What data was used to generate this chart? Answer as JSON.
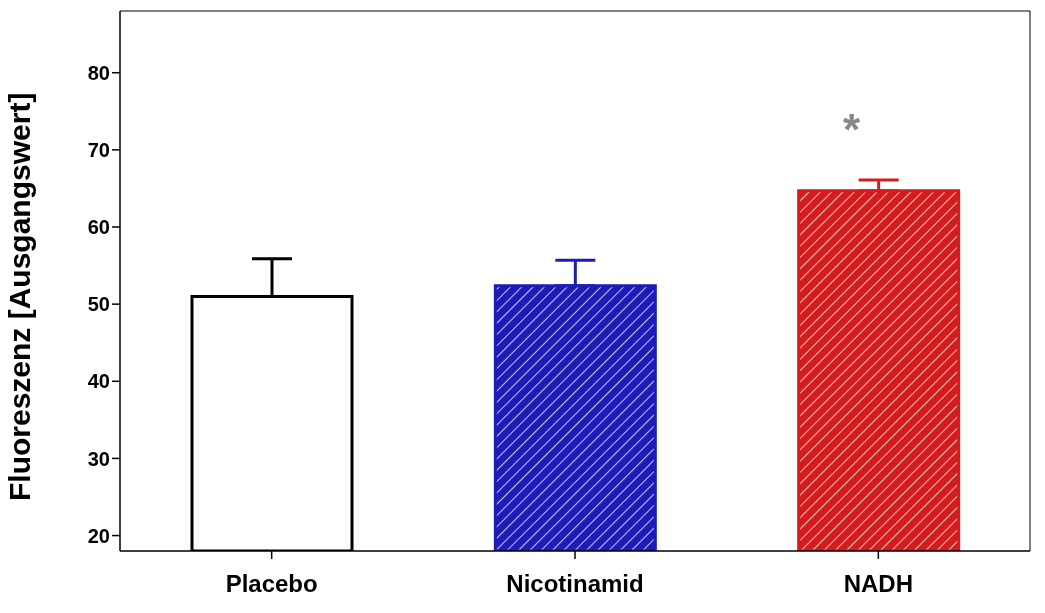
{
  "chart_data": {
    "type": "bar",
    "ylabel": "Fluoreszenz [Ausgangswert]",
    "categories": [
      "Placebo",
      "Nicotinamid",
      "NADH"
    ],
    "values": [
      51,
      52.4,
      64.7
    ],
    "errors": [
      [
        51,
        55.9
      ],
      [
        52.4,
        55.7
      ],
      [
        64.7,
        66.1
      ]
    ],
    "colors": [
      "#ffffff",
      "#1c1cb8",
      "#d41c1c"
    ],
    "ylim": [
      18,
      88
    ],
    "yticks": [
      20,
      30,
      40,
      50,
      60,
      70,
      80
    ],
    "annotations": [
      "*"
    ]
  }
}
